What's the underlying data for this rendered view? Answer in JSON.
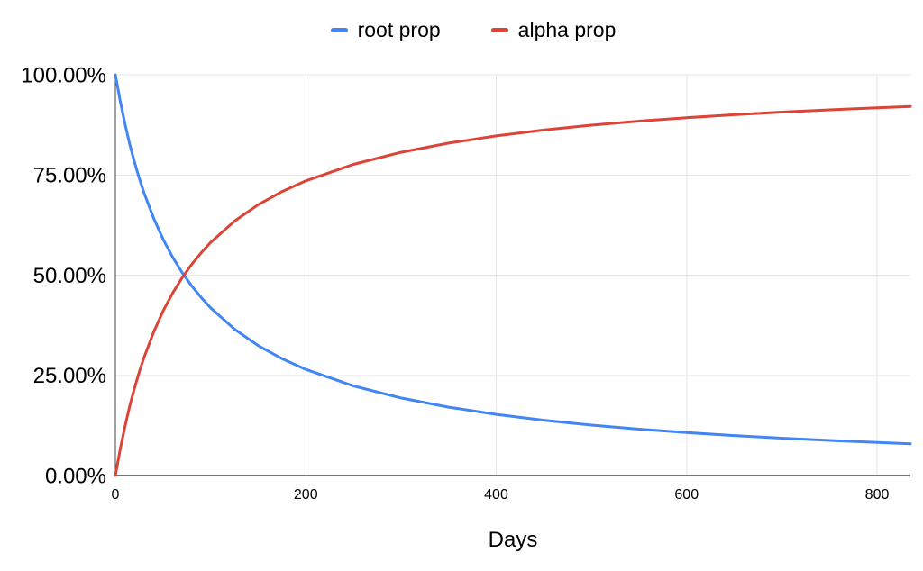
{
  "chart_data": {
    "type": "line",
    "title": "",
    "xlabel": "Days",
    "ylabel": "",
    "xlim": [
      0,
      835
    ],
    "ylim": [
      0,
      100
    ],
    "grid": true,
    "legend_position": "top",
    "background_color": "#ffffff",
    "x_ticks": [
      {
        "value": 0,
        "label": "0"
      },
      {
        "value": 200,
        "label": "200"
      },
      {
        "value": 400,
        "label": "400"
      },
      {
        "value": 600,
        "label": "600"
      },
      {
        "value": 800,
        "label": "800"
      }
    ],
    "y_ticks": [
      {
        "value": 0,
        "label": "0.00%"
      },
      {
        "value": 25,
        "label": "25.00%"
      },
      {
        "value": 50,
        "label": "50.00%"
      },
      {
        "value": 75,
        "label": "75.00%"
      },
      {
        "value": 100,
        "label": "100.00%"
      }
    ],
    "x": [
      0,
      5,
      10,
      15,
      20,
      25,
      30,
      40,
      50,
      60,
      70,
      80,
      90,
      100,
      125,
      150,
      175,
      200,
      250,
      300,
      350,
      400,
      450,
      500,
      550,
      600,
      650,
      700,
      750,
      800,
      835
    ],
    "series": [
      {
        "name": "root prop",
        "color": "#4285f4",
        "values": [
          100,
          93.51,
          87.8,
          82.76,
          78.26,
          74.23,
          70.59,
          64.29,
          59.02,
          54.55,
          50.7,
          47.37,
          44.44,
          41.86,
          36.55,
          32.43,
          29.15,
          26.47,
          22.36,
          19.35,
          17.06,
          15.25,
          13.79,
          12.59,
          11.58,
          10.71,
          9.97,
          9.33,
          8.76,
          8.26,
          7.94
        ]
      },
      {
        "name": "alpha prop",
        "color": "#db4437",
        "values": [
          0,
          6.49,
          12.2,
          17.24,
          21.74,
          25.77,
          29.41,
          35.71,
          40.98,
          45.45,
          49.3,
          52.63,
          55.56,
          58.14,
          63.45,
          67.57,
          70.85,
          73.53,
          77.64,
          80.65,
          82.94,
          84.75,
          86.21,
          87.41,
          88.42,
          89.29,
          90.03,
          90.67,
          91.24,
          91.74,
          92.06
        ]
      }
    ],
    "colors": {
      "gridline": "#e6e6e6",
      "x_axis_line": "#757575",
      "y_axis_line": "#424242",
      "tick_text": "#000000"
    }
  }
}
